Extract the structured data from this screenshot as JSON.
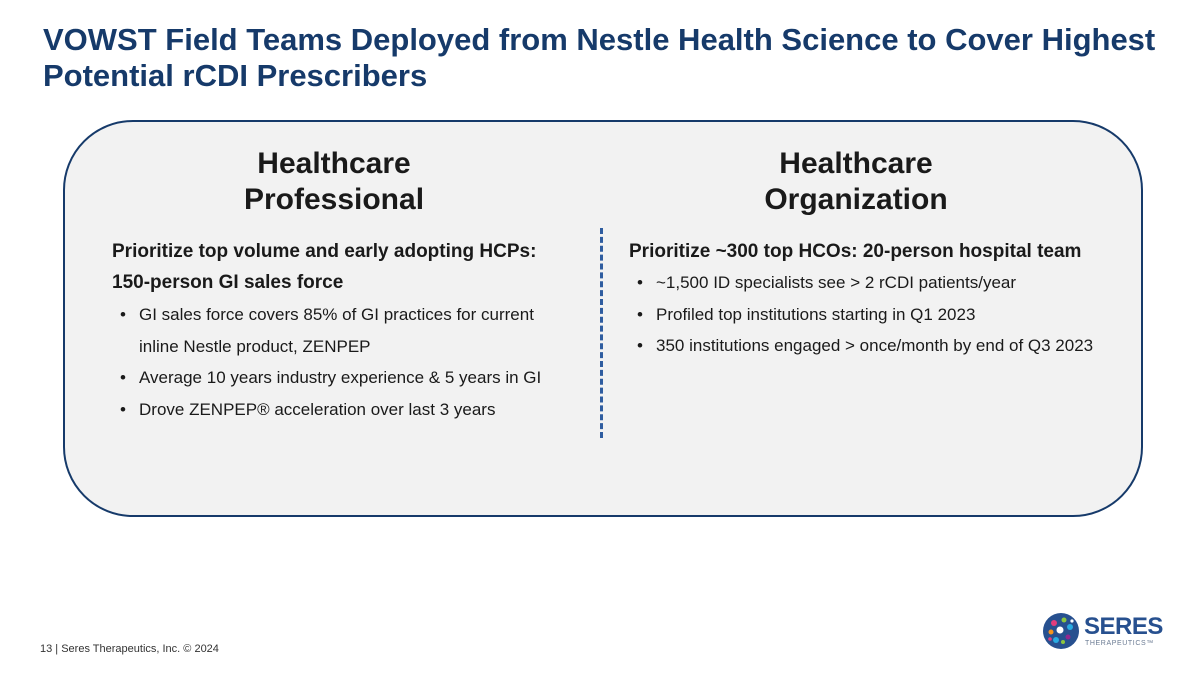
{
  "slide": {
    "title_line1": "VOWST Field Teams Deployed from Nestle Health Science to Cover Highest",
    "title_line2": "Potential rCDI Prescribers"
  },
  "hcp": {
    "heading_line1": "Healthcare",
    "heading_line2": "Professional",
    "lead_line1": "Prioritize top volume and early adopting HCPs:",
    "lead_line2": "150-person GI sales force",
    "bullets": [
      "GI sales force covers 85% of GI practices for current inline Nestle product, ZENPEP",
      "Average 10 years industry experience & 5 years in GI",
      "Drove ZENPEP® acceleration over last 3 years"
    ]
  },
  "hco": {
    "heading_line1": "Healthcare",
    "heading_line2": "Organization",
    "lead": "Prioritize ~300 top HCOs: 20-person hospital team",
    "bullets": [
      "~1,500 ID specialists see > 2 rCDI patients/year",
      "Profiled top institutions starting in Q1 2023",
      "350 institutions engaged > once/month by end of Q3 2023"
    ]
  },
  "footer": {
    "text": "13 |  Seres Therapeutics, Inc. © 2024"
  },
  "logo": {
    "wordmark": "SERES",
    "subtext": "THERAPEUTICS™",
    "icon": "seres-logo-icon"
  },
  "colors": {
    "title": "#163a6a",
    "panel_border": "#163a6a",
    "panel_fill": "#f2f2f2",
    "divider": "#2f5da0"
  }
}
